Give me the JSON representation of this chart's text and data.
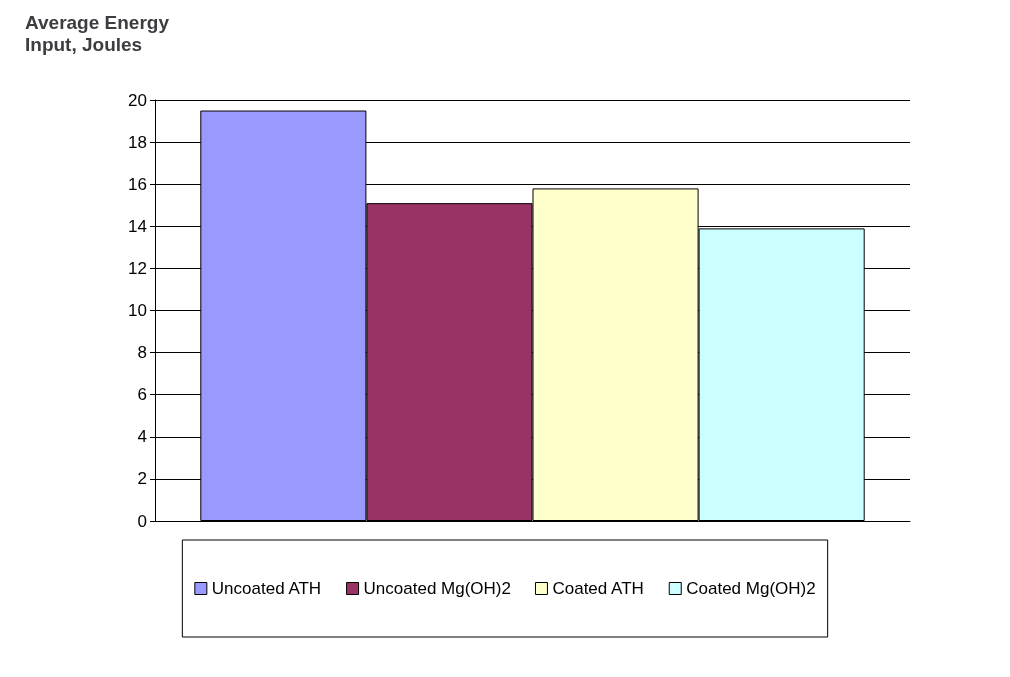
{
  "chart_data": {
    "type": "bar",
    "ylabel": "Average Energy Input, Joules",
    "categories": [
      null
    ],
    "series": [
      {
        "name": "Uncoated ATH",
        "color": "#9999ff",
        "values": [
          19.5
        ]
      },
      {
        "name": "Uncoated Mg(OH)2",
        "color": "#993366",
        "values": [
          15.1
        ]
      },
      {
        "name": "Coated ATH",
        "color": "#ffffcc",
        "values": [
          15.8
        ]
      },
      {
        "name": "Coated Mg(OH)2",
        "color": "#ccffff",
        "values": [
          13.9
        ]
      }
    ],
    "ylim": [
      0,
      20
    ],
    "yticks": [
      0,
      2,
      4,
      6,
      8,
      10,
      12,
      14,
      16,
      18,
      20
    ],
    "grid": "y",
    "legend": "bottom"
  }
}
